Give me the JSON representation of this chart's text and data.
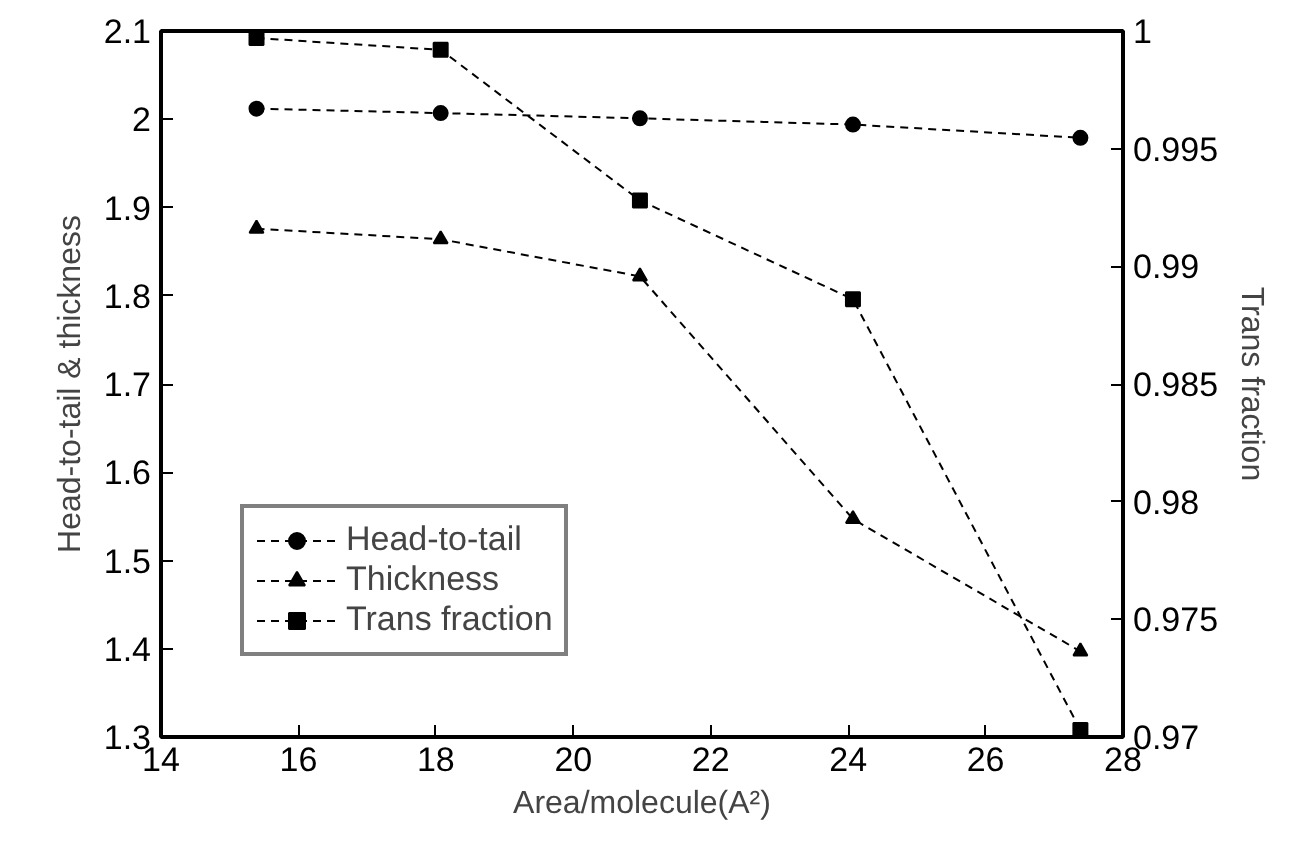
{
  "chart_data": {
    "type": "line",
    "xlabel": "Area/molecule(A²)",
    "ylabel": "Head-to-tail & thickness",
    "y2label": "Trans fraction",
    "xlim": [
      14,
      28
    ],
    "xticks": [
      14,
      16,
      18,
      20,
      22,
      24,
      26,
      28
    ],
    "ylim": [
      1.3,
      2.1
    ],
    "yticks": [
      1.3,
      1.4,
      1.5,
      1.6,
      1.7,
      1.8,
      1.9,
      2,
      2.1
    ],
    "y2lim": [
      0.97,
      1
    ],
    "y2ticks": [
      0.97,
      0.975,
      0.98,
      0.985,
      0.99,
      0.995,
      1
    ],
    "grid": false,
    "legend": "bottom left",
    "line_style": "dashed",
    "series": [
      {
        "name": "Head-to-tail",
        "color": "#000000",
        "marker": "circle",
        "x": [
          15.39,
          18.07,
          20.97,
          24.07,
          27.38
        ],
        "values": [
          2.012,
          2.007,
          2.001,
          1.994,
          1.979
        ]
      },
      {
        "name": "Thickness",
        "color": "#000000",
        "marker": "triangle",
        "x": [
          15.39,
          18.07,
          20.97,
          24.07,
          27.38
        ],
        "values": [
          1.876,
          1.864,
          1.822,
          1.547,
          1.397
        ]
      },
      {
        "name": "Trans fraction",
        "color": "#000000",
        "marker": "square",
        "axis": "y2",
        "x": [
          15.39,
          18.07,
          20.97,
          24.07,
          27.38
        ],
        "values": [
          0.9997,
          0.9992,
          0.9928,
          0.9886,
          0.9703
        ]
      }
    ]
  }
}
